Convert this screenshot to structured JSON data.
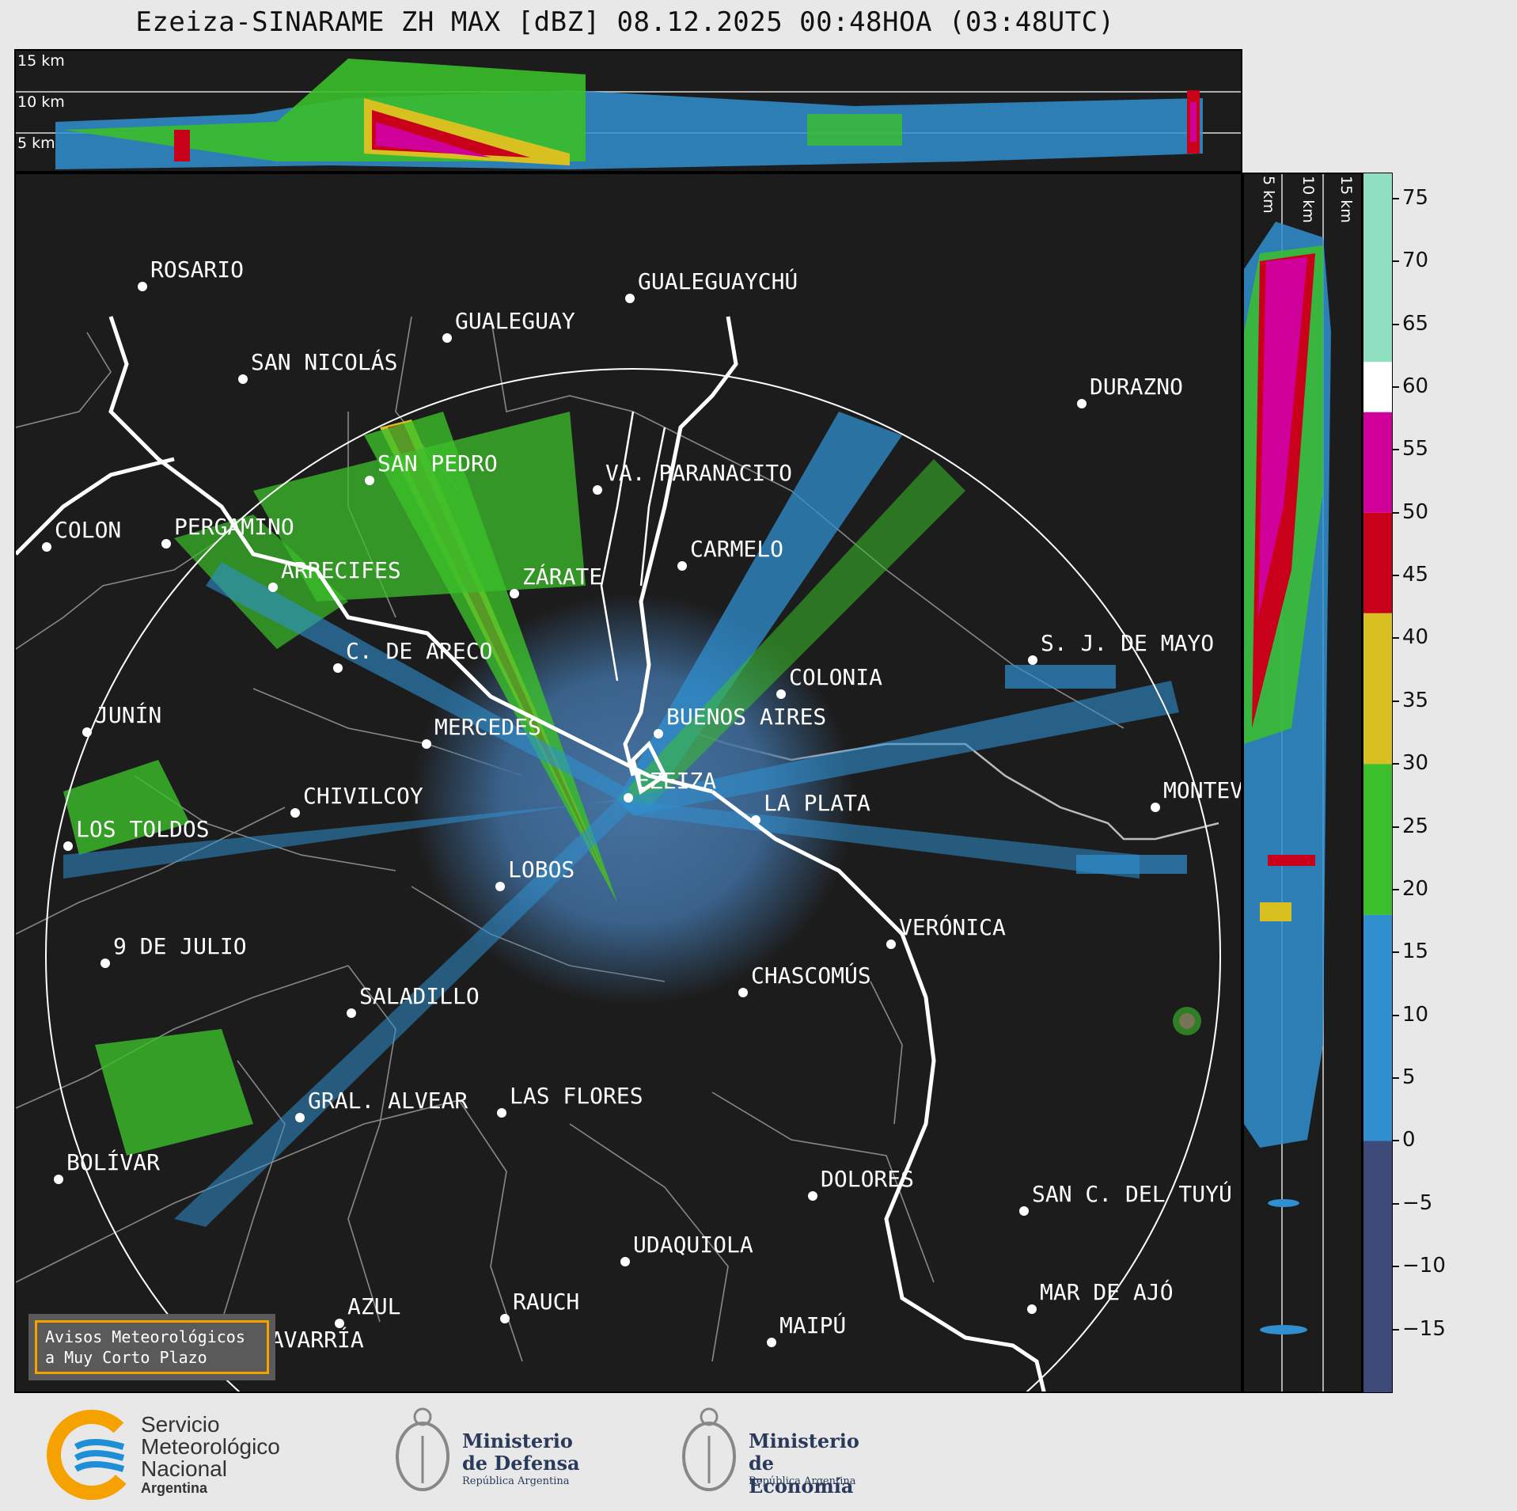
{
  "title": "Ezeiza-SINARAME ZH MAX [dBZ] 08.12.2025 00:48HOA (03:48UTC)",
  "top_panel": {
    "height_labels": [
      "15 km",
      "10 km",
      "5 km"
    ]
  },
  "side_panel": {
    "height_labels": [
      "5 km",
      "10 km",
      "15 km"
    ]
  },
  "colorbar": {
    "ticks": [
      "75",
      "70",
      "65",
      "60",
      "55",
      "50",
      "45",
      "40",
      "35",
      "30",
      "25",
      "20",
      "15",
      "10",
      "5",
      "0",
      "−5",
      "−10",
      "−15"
    ],
    "tick_values": [
      75,
      70,
      65,
      60,
      55,
      50,
      45,
      40,
      35,
      30,
      25,
      20,
      15,
      10,
      5,
      0,
      -5,
      -10,
      -15
    ],
    "range": [
      -20,
      77
    ],
    "bands": [
      {
        "from": -20,
        "to": 0,
        "color": "#3d4a7a"
      },
      {
        "from": 0,
        "to": 18,
        "color": "#2f8fcf"
      },
      {
        "from": 18,
        "to": 30,
        "color": "#3bbf2a"
      },
      {
        "from": 30,
        "to": 42,
        "color": "#d8c020"
      },
      {
        "from": 42,
        "to": 50,
        "color": "#c8001a"
      },
      {
        "from": 50,
        "to": 58,
        "color": "#d0009a"
      },
      {
        "from": 58,
        "to": 62,
        "color": "#ffffff"
      },
      {
        "from": 62,
        "to": 77,
        "color": "#8fe0c0"
      }
    ]
  },
  "cities": [
    {
      "name": "ROSARIO"
    },
    {
      "name": "GUALEGUAYCHÚ"
    },
    {
      "name": "GUALEGUAY"
    },
    {
      "name": "SAN NICOLÁS"
    },
    {
      "name": "DURAZNO"
    },
    {
      "name": "SAN PEDRO"
    },
    {
      "name": "VA. PARANACITO"
    },
    {
      "name": "COLON"
    },
    {
      "name": "PERGAMINO"
    },
    {
      "name": "CARMELO"
    },
    {
      "name": "ARRECIFES"
    },
    {
      "name": "ZÁRATE"
    },
    {
      "name": "S. J. DE MAYO"
    },
    {
      "name": "C. DE ARECO"
    },
    {
      "name": "COLONIA"
    },
    {
      "name": "JUNÍN"
    },
    {
      "name": "BUENOS AIRES"
    },
    {
      "name": "MERCEDES"
    },
    {
      "name": "MONTEV"
    },
    {
      "name": "EZEIZA"
    },
    {
      "name": "CHIVILCOY"
    },
    {
      "name": "LA PLATA"
    },
    {
      "name": "LOS TOLDOS"
    },
    {
      "name": "LOBOS"
    },
    {
      "name": "VERÓNICA"
    },
    {
      "name": "9 DE JULIO"
    },
    {
      "name": "CHASCOMÚS"
    },
    {
      "name": "SALADILLO"
    },
    {
      "name": "GRAL. ALVEAR"
    },
    {
      "name": "LAS FLORES"
    },
    {
      "name": "BOLÍVAR"
    },
    {
      "name": "DOLORES"
    },
    {
      "name": "SAN C. DEL TUYÚ"
    },
    {
      "name": "UDAQUIOLA"
    },
    {
      "name": "MAR DE AJÓ"
    },
    {
      "name": "AZUL"
    },
    {
      "name": "RAUCH"
    },
    {
      "name": "MAIPÚ"
    },
    {
      "name": "OLAVARRÍA"
    }
  ],
  "aviso": {
    "line1": "Avisos Meteorológicos",
    "line2": "a Muy Corto Plazo"
  },
  "logos": {
    "smn": {
      "line1": "Servicio",
      "line2": "Meteorológico",
      "line3": "Nacional",
      "line4": "Argentina"
    },
    "defensa": {
      "line1": "Ministerio",
      "line2": "de Defensa",
      "line3": "República Argentina"
    },
    "economia": {
      "line1": "Ministerio",
      "line2": "de Economía",
      "line3": "República Argentina"
    }
  },
  "colors": {
    "background": "#1c1c1c",
    "accent": "#f5a200",
    "smn_blue": "#1e8fd6"
  }
}
